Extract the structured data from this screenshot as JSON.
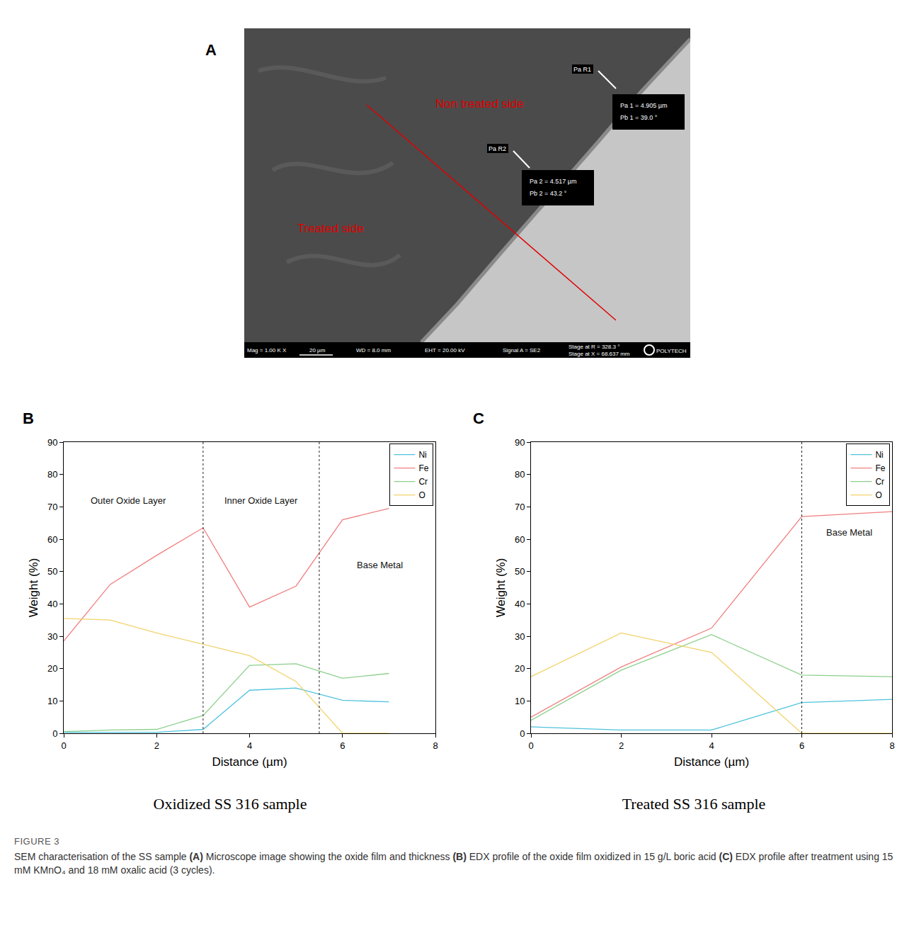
{
  "panel_a": {
    "letter": "A",
    "non_treated_label": "Non treated side",
    "treated_label": "Treated side",
    "measurements": [
      {
        "tag": "Pa R1",
        "lines": [
          "Pa 1 = 4.905 µm",
          "Pb 1 = 39.0 °"
        ]
      },
      {
        "tag": "Pa R2",
        "lines": [
          "Pa 2 = 4.517 µm",
          "Pb 2 = 43.2 °"
        ]
      }
    ],
    "footer": [
      "Mag = 1.00 K X",
      "20 µm",
      "WD = 8.0 mm",
      "EHT = 20.00 kV",
      "Signal A = SE2"
    ],
    "stage": [
      "Stage at R = 328.3 °",
      "Stage at X = 68.637 mm"
    ],
    "logo": "POLYTECH"
  },
  "chart_data": [
    {
      "type": "line",
      "panel": "B",
      "title": "Oxidized SS 316 sample",
      "x_label": "Distance (µm)",
      "y_label": "Weight (%)",
      "x": [
        0,
        1,
        2,
        3,
        4,
        5,
        6,
        7
      ],
      "series": [
        {
          "name": "Ni",
          "color": "#4fc3dc",
          "values": [
            0.3,
            0.3,
            0.3,
            1.2,
            13.3,
            14,
            10.2,
            9.7
          ]
        },
        {
          "name": "Fe",
          "color": "#f07f7f",
          "values": [
            28.5,
            46,
            55,
            63.5,
            39,
            45.5,
            66,
            69.5
          ]
        },
        {
          "name": "Cr",
          "color": "#8ccf8c",
          "values": [
            0.5,
            1,
            1.2,
            5.5,
            21,
            21.5,
            17,
            18.5
          ]
        },
        {
          "name": "O",
          "color": "#f2d36b",
          "values": [
            35.5,
            35,
            31,
            27.5,
            24,
            16,
            0,
            0
          ]
        }
      ],
      "vlines": [
        3,
        5.5
      ],
      "annotations": [
        {
          "text": "Outer Oxide Layer",
          "x": 1.4,
          "y": 72
        },
        {
          "text": "Inner Oxide Layer",
          "x": 4.25,
          "y": 72
        },
        {
          "text": "Base Metal",
          "x": 6.8,
          "y": 52
        }
      ],
      "xlim": [
        0,
        8
      ],
      "xticks": [
        0,
        2,
        4,
        6,
        8
      ],
      "ylim": [
        0,
        90
      ],
      "yticks": [
        0,
        10,
        20,
        30,
        40,
        50,
        60,
        70,
        80,
        90
      ],
      "grid": false,
      "legend": "top-right"
    },
    {
      "type": "line",
      "panel": "C",
      "title": "Treated SS 316 sample",
      "x_label": "Distance (µm)",
      "y_label": "Weight (%)",
      "x": [
        0,
        2,
        4,
        6,
        8
      ],
      "series": [
        {
          "name": "Ni",
          "color": "#4fc3dc",
          "values": [
            2,
            1,
            1,
            9.5,
            10.5
          ]
        },
        {
          "name": "Fe",
          "color": "#f07f7f",
          "values": [
            5,
            20.5,
            32.5,
            67,
            68.5
          ]
        },
        {
          "name": "Cr",
          "color": "#8ccf8c",
          "values": [
            4,
            19.5,
            30.5,
            18,
            17.5
          ]
        },
        {
          "name": "O",
          "color": "#f2d36b",
          "values": [
            17.5,
            31,
            25,
            0,
            0
          ]
        }
      ],
      "vlines": [
        6
      ],
      "annotations": [
        {
          "text": "Base Metal",
          "x": 7.05,
          "y": 62
        }
      ],
      "xlim": [
        0,
        8
      ],
      "xticks": [
        0,
        2,
        4,
        6,
        8
      ],
      "ylim": [
        0,
        90
      ],
      "yticks": [
        0,
        10,
        20,
        30,
        40,
        50,
        60,
        70,
        80,
        90
      ],
      "grid": false,
      "legend": "top-right"
    }
  ],
  "caption": {
    "label": "FIGURE 3",
    "segments": [
      {
        "text": "SEM characterisation of the SS sample ",
        "bold": false
      },
      {
        "text": "(A)",
        "bold": true
      },
      {
        "text": " Microscope image showing the oxide film and thickness ",
        "bold": false
      },
      {
        "text": "(B)",
        "bold": true
      },
      {
        "text": " EDX profile of the oxide film oxidized in 15 g/L boric acid ",
        "bold": false
      },
      {
        "text": "(C)",
        "bold": true
      },
      {
        "text": " EDX profile after treatment using 15 mM KMnO₄ and 18 mM oxalic acid (3 cycles).",
        "bold": false
      }
    ]
  }
}
